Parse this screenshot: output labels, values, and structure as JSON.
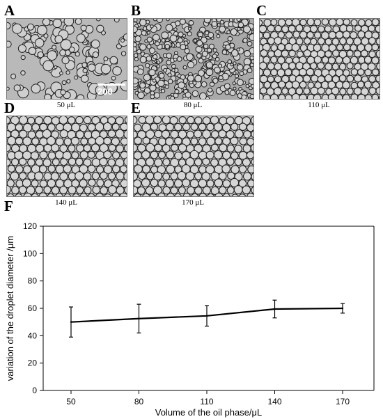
{
  "panels": [
    {
      "letter": "A",
      "caption": "50 μL",
      "scale_label": "200 μm",
      "density": "sparse"
    },
    {
      "letter": "B",
      "caption": "80 μL",
      "density": "fine"
    },
    {
      "letter": "C",
      "caption": "110 μL",
      "density": "medium"
    },
    {
      "letter": "D",
      "caption": "140 μL",
      "density": "packed"
    },
    {
      "letter": "E",
      "caption": "170 μL",
      "density": "packed"
    }
  ],
  "chart_letter": "F",
  "chart_data": {
    "type": "line",
    "categories": [
      "50",
      "80",
      "110",
      "140",
      "170"
    ],
    "series": [
      {
        "values": [
          50,
          52.5,
          54.5,
          59.5,
          60
        ],
        "errors": [
          11,
          10.5,
          7.5,
          6.5,
          3.5
        ]
      }
    ],
    "xlabel": "Volume of the oil phase/μL",
    "ylabel": "variation of the droplet diameter /μm",
    "ylim": [
      0,
      120
    ],
    "yticks": [
      0,
      20,
      40,
      60,
      80,
      100,
      120
    ],
    "grid": false,
    "line_color": "#000000"
  }
}
